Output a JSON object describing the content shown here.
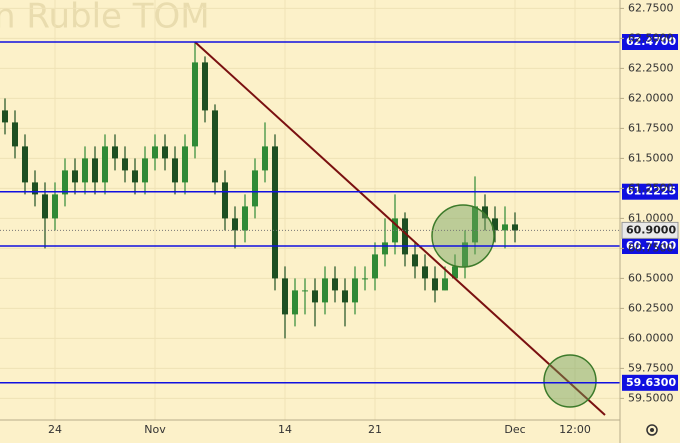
{
  "chart_data": {
    "type": "candlestick",
    "title": "n Ruble TOM",
    "categories": [
      null,
      null,
      null,
      null,
      null,
      "24",
      null,
      null,
      null,
      null,
      null,
      null,
      null,
      null,
      null,
      "Nov",
      null,
      null,
      null,
      null,
      null,
      null,
      null,
      null,
      null,
      null,
      null,
      null,
      "14",
      null,
      null,
      null,
      null,
      null,
      null,
      null,
      null,
      "21",
      null,
      null,
      null,
      null,
      null,
      null,
      null,
      null,
      null,
      null,
      null,
      null,
      null,
      "Dec",
      null,
      null,
      null,
      null,
      null,
      "12:00",
      null,
      null,
      null,
      null
    ],
    "open": [
      61.9,
      61.8,
      61.6,
      61.3,
      61.2,
      61.0,
      61.2,
      61.4,
      61.3,
      61.5,
      61.3,
      61.6,
      61.5,
      61.4,
      61.3,
      61.5,
      61.6,
      61.5,
      61.3,
      61.6,
      62.3,
      61.9,
      61.3,
      61.0,
      60.9,
      61.1,
      61.4,
      61.6,
      60.5,
      60.2,
      60.4,
      60.4,
      60.3,
      60.5,
      60.4,
      60.3,
      60.5,
      60.5,
      60.7,
      60.8,
      61.0,
      60.7,
      60.6,
      60.5,
      60.4,
      60.5,
      60.6,
      60.8,
      61.1,
      61.0,
      60.9,
      60.95,
      null,
      null,
      null,
      null,
      null,
      null,
      null,
      null,
      null,
      null
    ],
    "high": [
      62.0,
      61.9,
      61.7,
      61.4,
      61.3,
      61.3,
      61.5,
      61.5,
      61.6,
      61.6,
      61.7,
      61.7,
      61.6,
      61.5,
      61.6,
      61.7,
      61.7,
      61.6,
      61.7,
      62.47,
      62.35,
      61.95,
      61.4,
      61.1,
      61.2,
      61.5,
      61.8,
      61.7,
      60.6,
      60.5,
      60.5,
      60.5,
      60.6,
      60.6,
      60.5,
      60.6,
      60.6,
      60.8,
      61.0,
      61.2,
      61.05,
      60.8,
      60.7,
      60.6,
      60.6,
      60.7,
      60.9,
      61.35,
      61.2,
      61.1,
      61.1,
      61.05,
      null,
      null,
      null,
      null,
      null,
      null,
      null,
      null,
      null,
      null
    ],
    "low": [
      61.7,
      61.5,
      61.2,
      61.1,
      60.75,
      60.9,
      61.1,
      61.2,
      61.2,
      61.2,
      61.2,
      61.4,
      61.3,
      61.2,
      61.2,
      61.4,
      61.4,
      61.2,
      61.2,
      61.5,
      61.8,
      61.2,
      60.9,
      60.75,
      60.8,
      61.0,
      61.3,
      60.4,
      60.0,
      60.1,
      60.2,
      60.1,
      60.2,
      60.3,
      60.1,
      60.2,
      60.4,
      60.4,
      60.6,
      60.7,
      60.6,
      60.5,
      60.4,
      60.3,
      60.4,
      60.5,
      60.5,
      60.7,
      60.9,
      60.8,
      60.75,
      60.8,
      null,
      null,
      null,
      null,
      null,
      null,
      null,
      null,
      null,
      null
    ],
    "close": [
      61.8,
      61.6,
      61.3,
      61.2,
      61.0,
      61.2,
      61.4,
      61.3,
      61.5,
      61.3,
      61.6,
      61.5,
      61.4,
      61.3,
      61.5,
      61.6,
      61.5,
      61.3,
      61.6,
      62.3,
      61.9,
      61.3,
      61.0,
      60.9,
      61.1,
      61.4,
      61.6,
      60.5,
      60.2,
      60.4,
      60.4,
      60.3,
      60.5,
      60.4,
      60.3,
      60.5,
      60.5,
      60.7,
      60.8,
      61.0,
      60.7,
      60.6,
      60.5,
      60.4,
      60.5,
      60.6,
      60.8,
      61.1,
      61.0,
      60.9,
      60.95,
      60.9,
      null,
      null,
      null,
      null,
      null,
      null,
      null,
      null,
      null,
      null
    ],
    "up_color": "#2f8a36",
    "down_color": "#1d4f22",
    "ylim": [
      59.32,
      62.82
    ],
    "yticks": [
      {
        "value": 59.5,
        "label": "59.5000"
      },
      {
        "value": 59.75,
        "label": "59.7500"
      },
      {
        "value": 60.0,
        "label": "60.0000"
      },
      {
        "value": 60.25,
        "label": "60.2500"
      },
      {
        "value": 60.5,
        "label": "60.5000"
      },
      {
        "value": 60.75,
        "label": "60.7500"
      },
      {
        "value": 61.0,
        "label": "61.0000"
      },
      {
        "value": 61.25,
        "label": "61.2500"
      },
      {
        "value": 61.5,
        "label": "61.5000"
      },
      {
        "value": 61.75,
        "label": "61.7500"
      },
      {
        "value": 62.0,
        "label": "62.0000"
      },
      {
        "value": 62.25,
        "label": "62.2500"
      },
      {
        "value": 62.5,
        "label": "62.5000"
      },
      {
        "value": 62.75,
        "label": "62.7500"
      }
    ],
    "grid": true,
    "levels": [
      {
        "value": 62.47,
        "label": "62.4700"
      },
      {
        "value": 61.2225,
        "label": "61.2225"
      },
      {
        "value": 60.77,
        "label": "60.7700"
      },
      {
        "value": 59.63,
        "label": "59.6300"
      }
    ],
    "level_color": "#1010e0",
    "last_price": {
      "value": 60.9,
      "label": "60.9000"
    }
  }
}
